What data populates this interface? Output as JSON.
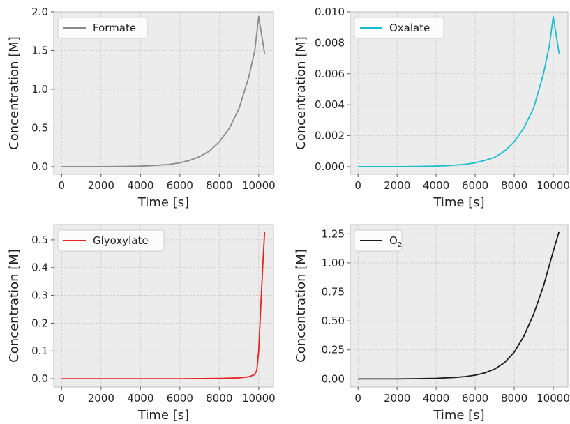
{
  "chart_data": [
    {
      "type": "line",
      "xlabel": "Time [s]",
      "ylabel": "Concentration [M]",
      "xlim": [
        -400,
        10750
      ],
      "ylim": [
        -0.1,
        2.0
      ],
      "xticks": [
        0,
        2000,
        4000,
        6000,
        8000,
        10000
      ],
      "xtick_labels": [
        "0",
        "2000",
        "4000",
        "6000",
        "8000",
        "10000"
      ],
      "yticks": [
        0.0,
        0.5,
        1.0,
        1.5,
        2.0
      ],
      "ytick_labels": [
        "0.0",
        "0.5",
        "1.0",
        "1.5",
        "2.0"
      ],
      "grid": true,
      "legend": "top-left",
      "series": [
        {
          "name": "Formate",
          "color": "#8a8a8a",
          "x": [
            0,
            1000,
            2000,
            3000,
            4000,
            5000,
            5500,
            6000,
            6500,
            7000,
            7500,
            8000,
            8500,
            9000,
            9500,
            9800,
            10000,
            10300
          ],
          "y": [
            0.0,
            0.0,
            0.0,
            0.002,
            0.006,
            0.02,
            0.03,
            0.05,
            0.08,
            0.13,
            0.2,
            0.32,
            0.49,
            0.75,
            1.16,
            1.5,
            1.94,
            1.46
          ]
        }
      ]
    },
    {
      "type": "line",
      "xlabel": "Time [s]",
      "ylabel": "Concentration [M]",
      "xlim": [
        -400,
        10750
      ],
      "ylim": [
        -0.0005,
        0.01
      ],
      "xticks": [
        0,
        2000,
        4000,
        6000,
        8000,
        10000
      ],
      "xtick_labels": [
        "0",
        "2000",
        "4000",
        "6000",
        "8000",
        "10000"
      ],
      "yticks": [
        0.0,
        0.002,
        0.004,
        0.006,
        0.008,
        0.01
      ],
      "ytick_labels": [
        "0.000",
        "0.002",
        "0.004",
        "0.006",
        "0.008",
        "0.010"
      ],
      "grid": true,
      "legend": "top-left",
      "series": [
        {
          "name": "Oxalate",
          "color": "#17becf",
          "x": [
            0,
            1000,
            2000,
            3000,
            4000,
            5000,
            5500,
            6000,
            6500,
            7000,
            7500,
            8000,
            8500,
            9000,
            9500,
            9800,
            10000,
            10300
          ],
          "y": [
            0.0,
            0.0,
            0.0,
            1e-05,
            3e-05,
            0.0001,
            0.00015,
            0.00025,
            0.0004,
            0.0006,
            0.001,
            0.0016,
            0.0025,
            0.0038,
            0.006,
            0.0078,
            0.0097,
            0.0073
          ]
        }
      ]
    },
    {
      "type": "line",
      "xlabel": "Time [s]",
      "ylabel": "Concentration [M]",
      "xlim": [
        -400,
        10750
      ],
      "ylim": [
        -0.03,
        0.555
      ],
      "xticks": [
        0,
        2000,
        4000,
        6000,
        8000,
        10000
      ],
      "xtick_labels": [
        "0",
        "2000",
        "4000",
        "6000",
        "8000",
        "10000"
      ],
      "yticks": [
        0.0,
        0.1,
        0.2,
        0.3,
        0.4,
        0.5
      ],
      "ytick_labels": [
        "0.0",
        "0.1",
        "0.2",
        "0.3",
        "0.4",
        "0.5"
      ],
      "grid": true,
      "legend": "top-left",
      "series": [
        {
          "name": "Glyoxylate",
          "color": "#e82020",
          "x": [
            0,
            2000,
            4000,
            6000,
            8000,
            9000,
            9500,
            9800,
            9900,
            10000,
            10100,
            10200,
            10300
          ],
          "y": [
            0.0,
            0.0,
            0.0,
            0.0,
            0.001,
            0.003,
            0.007,
            0.015,
            0.03,
            0.1,
            0.25,
            0.4,
            0.53
          ]
        }
      ]
    },
    {
      "type": "line",
      "xlabel": "Time [s]",
      "ylabel": "Concentration [M]",
      "xlim": [
        -400,
        10750
      ],
      "ylim": [
        -0.07,
        1.33
      ],
      "xticks": [
        0,
        2000,
        4000,
        6000,
        8000,
        10000
      ],
      "xtick_labels": [
        "0",
        "2000",
        "4000",
        "6000",
        "8000",
        "10000"
      ],
      "yticks": [
        0.0,
        0.25,
        0.5,
        0.75,
        1.0,
        1.25
      ],
      "ytick_labels": [
        "0.00",
        "0.25",
        "0.50",
        "0.75",
        "1.00",
        "1.25"
      ],
      "grid": true,
      "legend": "top-left",
      "series": [
        {
          "name": "O",
          "name_subscript": "2",
          "color": "#1a1a1a",
          "x": [
            0,
            1000,
            2000,
            3000,
            4000,
            5000,
            5500,
            6000,
            6500,
            7000,
            7500,
            8000,
            8500,
            9000,
            9500,
            10000,
            10300
          ],
          "y": [
            0.0,
            0.0,
            0.0,
            0.002,
            0.005,
            0.013,
            0.02,
            0.032,
            0.052,
            0.085,
            0.14,
            0.23,
            0.37,
            0.56,
            0.8,
            1.1,
            1.27
          ]
        }
      ]
    }
  ]
}
